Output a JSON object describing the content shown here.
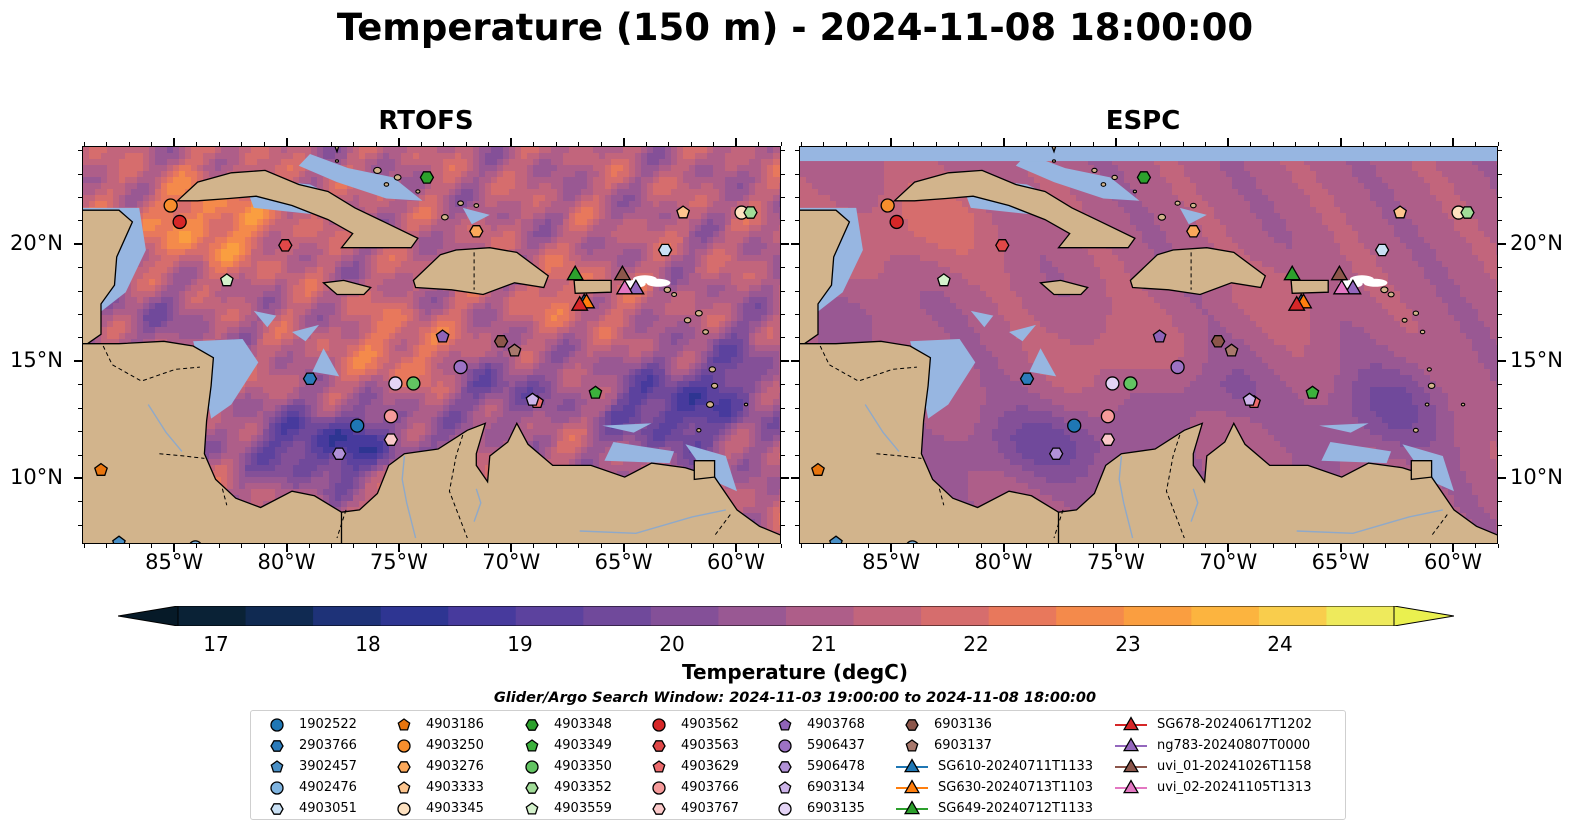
{
  "title": "Temperature (150 m) - 2024-11-08 18:00:00",
  "panels": [
    {
      "id": "rtofs",
      "title": "RTOFS"
    },
    {
      "id": "espc",
      "title": "ESPC"
    }
  ],
  "lon_labels": [
    "85°W",
    "80°W",
    "75°W",
    "70°W",
    "65°W",
    "60°W"
  ],
  "lat_labels": [
    "20°N",
    "15°N",
    "10°N"
  ],
  "colorbar": {
    "label": "Temperature (degC)",
    "ticks": [
      "17",
      "18",
      "19",
      "20",
      "21",
      "22",
      "23",
      "24"
    ],
    "min": 16.75,
    "max": 24.5,
    "step": 0.5,
    "colors": [
      "#0a2236",
      "#102a52",
      "#1e3278",
      "#2e3592",
      "#473a9d",
      "#5c429e",
      "#70499b",
      "#845098",
      "#995893",
      "#ae5e89",
      "#c2657c",
      "#d66d6d",
      "#e8785c",
      "#f48a4b",
      "#fa9e40",
      "#fcb43f",
      "#f9cd4c",
      "#eeea5c"
    ],
    "under_color": "#061a28",
    "over_color": "#eaf04f"
  },
  "colors": {
    "land": "#d2b48c",
    "ocean_shallow": "#97b6e1"
  },
  "legend": {
    "title": "Glider/Argo Search Window: 2024-11-03 19:00:00 to 2024-11-08 18:00:00",
    "entries": [
      {
        "label": "1902522",
        "marker": "circle",
        "color": "#1f77b4"
      },
      {
        "label": "2903766",
        "marker": "hexagon",
        "color": "#2b7bba"
      },
      {
        "label": "3902457",
        "marker": "pentagon",
        "color": "#4a90c6"
      },
      {
        "label": "4902476",
        "marker": "circle",
        "color": "#7fb4e0"
      },
      {
        "label": "4903051",
        "marker": "hexagon",
        "color": "#c9e0f4"
      },
      {
        "label": "4903186",
        "marker": "pentagon",
        "color": "#e8750e"
      },
      {
        "label": "4903250",
        "marker": "circle",
        "color": "#f78e2d"
      },
      {
        "label": "4903276",
        "marker": "hexagon",
        "color": "#fba85a"
      },
      {
        "label": "4903333",
        "marker": "pentagon",
        "color": "#fdc58e"
      },
      {
        "label": "4903345",
        "marker": "circle",
        "color": "#fde1c0"
      },
      {
        "label": "4903348",
        "marker": "hexagon",
        "color": "#2ca02c"
      },
      {
        "label": "4903349",
        "marker": "pentagon",
        "color": "#3cb13c"
      },
      {
        "label": "4903350",
        "marker": "circle",
        "color": "#62c462"
      },
      {
        "label": "4903352",
        "marker": "hexagon",
        "color": "#a1dc98"
      },
      {
        "label": "4903559",
        "marker": "pentagon",
        "color": "#d4f2cc"
      },
      {
        "label": "4903562",
        "marker": "circle",
        "color": "#d62728"
      },
      {
        "label": "4903563",
        "marker": "hexagon",
        "color": "#e04848"
      },
      {
        "label": "4903629",
        "marker": "pentagon",
        "color": "#ec6a6c"
      },
      {
        "label": "4903766",
        "marker": "circle",
        "color": "#f59a9a"
      },
      {
        "label": "4903767",
        "marker": "hexagon",
        "color": "#fbc9c9"
      },
      {
        "label": "4903768",
        "marker": "pentagon",
        "color": "#8f63b8"
      },
      {
        "label": "5906437",
        "marker": "circle",
        "color": "#9c72c4"
      },
      {
        "label": "5906478",
        "marker": "hexagon",
        "color": "#b191d6"
      },
      {
        "label": "6903134",
        "marker": "pentagon",
        "color": "#cdb4ea"
      },
      {
        "label": "6903135",
        "marker": "circle",
        "color": "#e3d3f5"
      },
      {
        "label": "6903136",
        "marker": "hexagon",
        "color": "#8c564b"
      },
      {
        "label": "6903137",
        "marker": "pentagon",
        "color": "#a8786c"
      },
      {
        "label": "SG610-20240711T1133",
        "marker": "triangle-line",
        "color": "#1f77b4"
      },
      {
        "label": "SG630-20240713T1103",
        "marker": "triangle-line",
        "color": "#ff7f0e"
      },
      {
        "label": "SG649-20240712T1133",
        "marker": "triangle-line",
        "color": "#2ca02c"
      },
      {
        "label": "SG678-20240617T1202",
        "marker": "triangle-line",
        "color": "#d62728"
      },
      {
        "label": "ng783-20240807T0000",
        "marker": "triangle-line",
        "color": "#9467bd"
      },
      {
        "label": "uvi_01-20241026T1158",
        "marker": "triangle-line",
        "color": "#8c564b"
      },
      {
        "label": "uvi_02-20241105T1313",
        "marker": "triangle-line",
        "color": "#e377c2"
      }
    ]
  },
  "floats": [
    {
      "id": "1902522",
      "lon": -76.9,
      "lat": 12.3
    },
    {
      "id": "2903766",
      "lon": -79.0,
      "lat": 14.3
    },
    {
      "id": "3902457",
      "lon": -87.5,
      "lat": 7.3
    },
    {
      "id": "4902476",
      "lon": -84.1,
      "lat": 7.1
    },
    {
      "id": "4903051",
      "lon": -63.2,
      "lat": 19.8
    },
    {
      "id": "4903186",
      "lon": -88.3,
      "lat": 10.4
    },
    {
      "id": "4903250",
      "lon": -85.2,
      "lat": 21.7
    },
    {
      "id": "4903276",
      "lon": -71.6,
      "lat": 20.6
    },
    {
      "id": "4903333",
      "lon": -62.4,
      "lat": 21.4
    },
    {
      "id": "4903345",
      "lon": -59.8,
      "lat": 21.4
    },
    {
      "id": "4903348",
      "lon": -73.8,
      "lat": 22.9
    },
    {
      "id": "4903349",
      "lon": -66.3,
      "lat": 13.7
    },
    {
      "id": "4903350",
      "lon": -74.4,
      "lat": 14.1
    },
    {
      "id": "4903352",
      "lon": -59.4,
      "lat": 21.4
    },
    {
      "id": "4903559",
      "lon": -82.7,
      "lat": 18.5
    },
    {
      "id": "4903562",
      "lon": -84.8,
      "lat": 21.0
    },
    {
      "id": "4903563",
      "lon": -80.1,
      "lat": 20.0
    },
    {
      "id": "4903629",
      "lon": -68.9,
      "lat": 13.3
    },
    {
      "id": "4903766",
      "lon": -75.4,
      "lat": 12.7
    },
    {
      "id": "4903767",
      "lon": -75.4,
      "lat": 11.7
    },
    {
      "id": "4903768",
      "lon": -73.1,
      "lat": 16.1
    },
    {
      "id": "5906437",
      "lon": -72.3,
      "lat": 14.8
    },
    {
      "id": "5906478",
      "lon": -77.7,
      "lat": 11.1
    },
    {
      "id": "6903134",
      "lon": -69.1,
      "lat": 13.4
    },
    {
      "id": "6903135",
      "lon": -75.2,
      "lat": 14.1
    },
    {
      "id": "6903136",
      "lon": -70.5,
      "lat": 15.9
    },
    {
      "id": "6903137",
      "lon": -69.9,
      "lat": 15.5
    }
  ],
  "gliders": [
    {
      "id": "SG610-20240711T1133",
      "lon": -66.8,
      "lat": 17.6
    },
    {
      "id": "SG630-20240713T1103",
      "lon": -66.7,
      "lat": 17.6
    },
    {
      "id": "SG649-20240712T1133",
      "lon": -67.2,
      "lat": 18.8
    },
    {
      "id": "SG678-20240617T1202",
      "lon": -67.0,
      "lat": 17.5
    },
    {
      "id": "ng783-20240807T0000",
      "lon": -64.5,
      "lat": 18.2
    },
    {
      "id": "uvi_01-20241026T1158",
      "lon": -65.1,
      "lat": 18.8
    },
    {
      "id": "uvi_02-20241105T1313",
      "lon": -65.0,
      "lat": 18.2
    }
  ]
}
